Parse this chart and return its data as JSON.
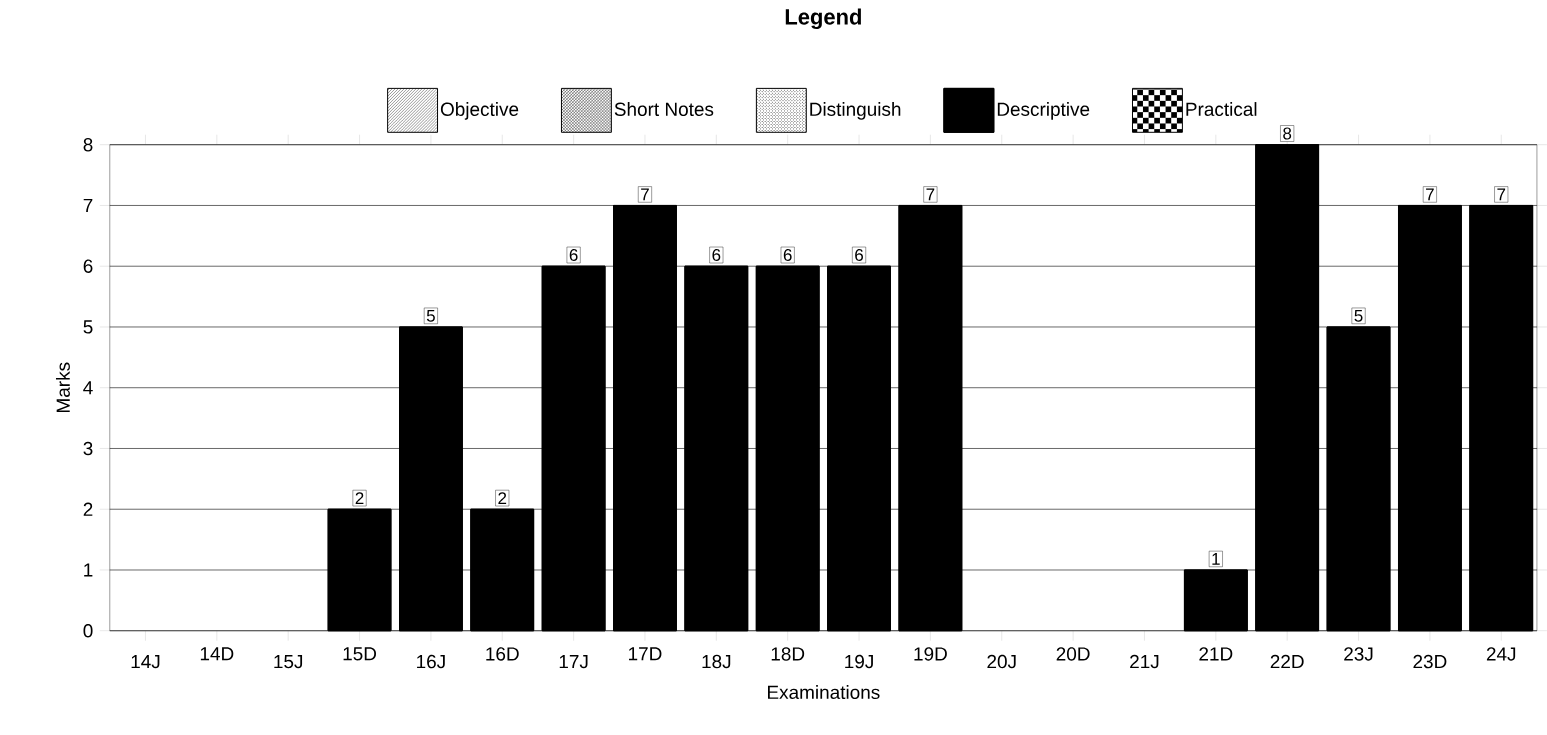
{
  "chart_data": {
    "type": "bar",
    "legend_title": "Legend",
    "xlabel": "Examinations",
    "ylabel": "Marks",
    "categories": [
      "14J",
      "14D",
      "15J",
      "15D",
      "16J",
      "16D",
      "17J",
      "17D",
      "18J",
      "18D",
      "19J",
      "19D",
      "20J",
      "20D",
      "21J",
      "21D",
      "22D",
      "23J",
      "23D",
      "24J"
    ],
    "series": [
      {
        "name": "Objective",
        "color": "#000000",
        "values": [
          0,
          0,
          0,
          0,
          0,
          0,
          0,
          0,
          0,
          0,
          0,
          0,
          0,
          0,
          0,
          0,
          0,
          0,
          0,
          0
        ]
      },
      {
        "name": "Short Notes",
        "color": "#000000",
        "values": [
          0,
          0,
          0,
          0,
          0,
          0,
          0,
          0,
          0,
          0,
          0,
          0,
          0,
          0,
          0,
          0,
          0,
          0,
          0,
          0
        ]
      },
      {
        "name": "Distinguish",
        "color": "#000000",
        "values": [
          0,
          0,
          0,
          0,
          0,
          0,
          0,
          0,
          0,
          0,
          0,
          0,
          0,
          0,
          0,
          0,
          0,
          0,
          0,
          0
        ]
      },
      {
        "name": "Descriptive",
        "color": "#000000",
        "values": [
          0,
          0,
          0,
          2,
          5,
          2,
          6,
          7,
          6,
          6,
          6,
          7,
          0,
          0,
          0,
          1,
          8,
          5,
          7,
          7
        ],
        "value_labels": [
          null,
          null,
          null,
          "2",
          "5",
          "2",
          "6",
          "7",
          "6",
          "6",
          "6",
          "7",
          null,
          null,
          null,
          "1",
          "8",
          "5",
          "7",
          "7"
        ]
      },
      {
        "name": "Practical",
        "color": "#000000",
        "values": [
          0,
          0,
          0,
          0,
          0,
          0,
          0,
          0,
          0,
          0,
          0,
          0,
          0,
          0,
          0,
          0,
          0,
          0,
          0,
          0
        ]
      }
    ],
    "ylim": [
      0,
      8
    ],
    "yticks": [
      0,
      1,
      2,
      3,
      4,
      5,
      6,
      7,
      8
    ],
    "grid": "y",
    "legend": "top"
  }
}
